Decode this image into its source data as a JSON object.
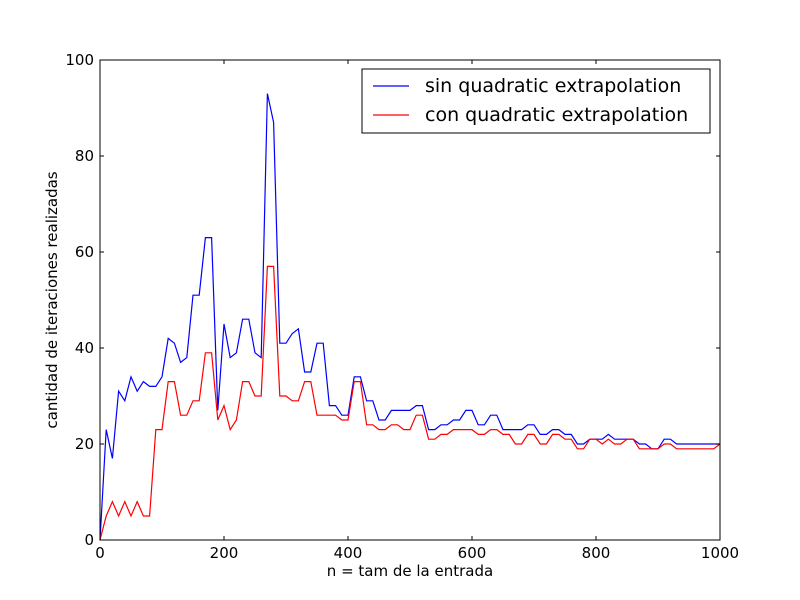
{
  "chart_data": {
    "type": "line",
    "title": "",
    "xlabel": "n = tam de la entrada",
    "ylabel": "cantidad de iteraciones realizadas",
    "xlim": [
      0,
      1000
    ],
    "ylim": [
      0,
      100
    ],
    "xticks": [
      0,
      200,
      400,
      600,
      800,
      1000
    ],
    "yticks": [
      0,
      20,
      40,
      60,
      80,
      100
    ],
    "grid": false,
    "legend_position": "top-right",
    "x": [
      0,
      10,
      20,
      30,
      40,
      50,
      60,
      70,
      80,
      90,
      100,
      110,
      120,
      130,
      140,
      150,
      160,
      170,
      180,
      190,
      200,
      210,
      220,
      230,
      240,
      250,
      260,
      270,
      280,
      290,
      300,
      310,
      320,
      330,
      340,
      350,
      360,
      370,
      380,
      390,
      400,
      410,
      420,
      430,
      440,
      450,
      460,
      470,
      480,
      490,
      500,
      510,
      520,
      530,
      540,
      550,
      560,
      570,
      580,
      590,
      600,
      610,
      620,
      630,
      640,
      650,
      660,
      670,
      680,
      690,
      700,
      710,
      720,
      730,
      740,
      750,
      760,
      770,
      780,
      790,
      800,
      810,
      820,
      830,
      840,
      850,
      860,
      870,
      880,
      890,
      900,
      910,
      920,
      930,
      940,
      950,
      960,
      970,
      980,
      990,
      1000
    ],
    "series": [
      {
        "name": "sin quadratic extrapolation",
        "color": "#0000ff",
        "values": [
          0,
          23,
          17,
          31,
          29,
          34,
          31,
          33,
          32,
          32,
          34,
          42,
          41,
          37,
          38,
          51,
          51,
          63,
          63,
          27,
          45,
          38,
          39,
          46,
          46,
          39,
          38,
          93,
          87,
          41,
          41,
          43,
          44,
          35,
          35,
          41,
          41,
          28,
          28,
          26,
          26,
          34,
          34,
          29,
          29,
          25,
          25,
          27,
          27,
          27,
          27,
          28,
          28,
          23,
          23,
          24,
          24,
          25,
          25,
          27,
          27,
          24,
          24,
          26,
          26,
          23,
          23,
          23,
          23,
          24,
          24,
          22,
          22,
          23,
          23,
          22,
          22,
          20,
          20,
          21,
          21,
          21,
          22,
          21,
          21,
          21,
          21,
          20,
          20,
          19,
          19,
          21,
          21,
          20,
          20,
          20,
          20,
          20,
          20,
          20,
          20
        ]
      },
      {
        "name": "con quadratic extrapolation",
        "color": "#ff0000",
        "values": [
          0,
          5,
          8,
          5,
          8,
          5,
          8,
          5,
          5,
          23,
          23,
          33,
          33,
          26,
          26,
          29,
          29,
          39,
          39,
          25,
          28,
          23,
          25,
          33,
          33,
          30,
          30,
          57,
          57,
          30,
          30,
          29,
          29,
          33,
          33,
          26,
          26,
          26,
          26,
          25,
          25,
          33,
          33,
          24,
          24,
          23,
          23,
          24,
          24,
          23,
          23,
          26,
          26,
          21,
          21,
          22,
          22,
          23,
          23,
          23,
          23,
          22,
          22,
          23,
          23,
          22,
          22,
          20,
          20,
          22,
          22,
          20,
          20,
          22,
          22,
          21,
          21,
          19,
          19,
          21,
          21,
          20,
          21,
          20,
          20,
          21,
          21,
          19,
          19,
          19,
          19,
          20,
          20,
          19,
          19,
          19,
          19,
          19,
          19,
          19,
          20
        ]
      }
    ]
  }
}
